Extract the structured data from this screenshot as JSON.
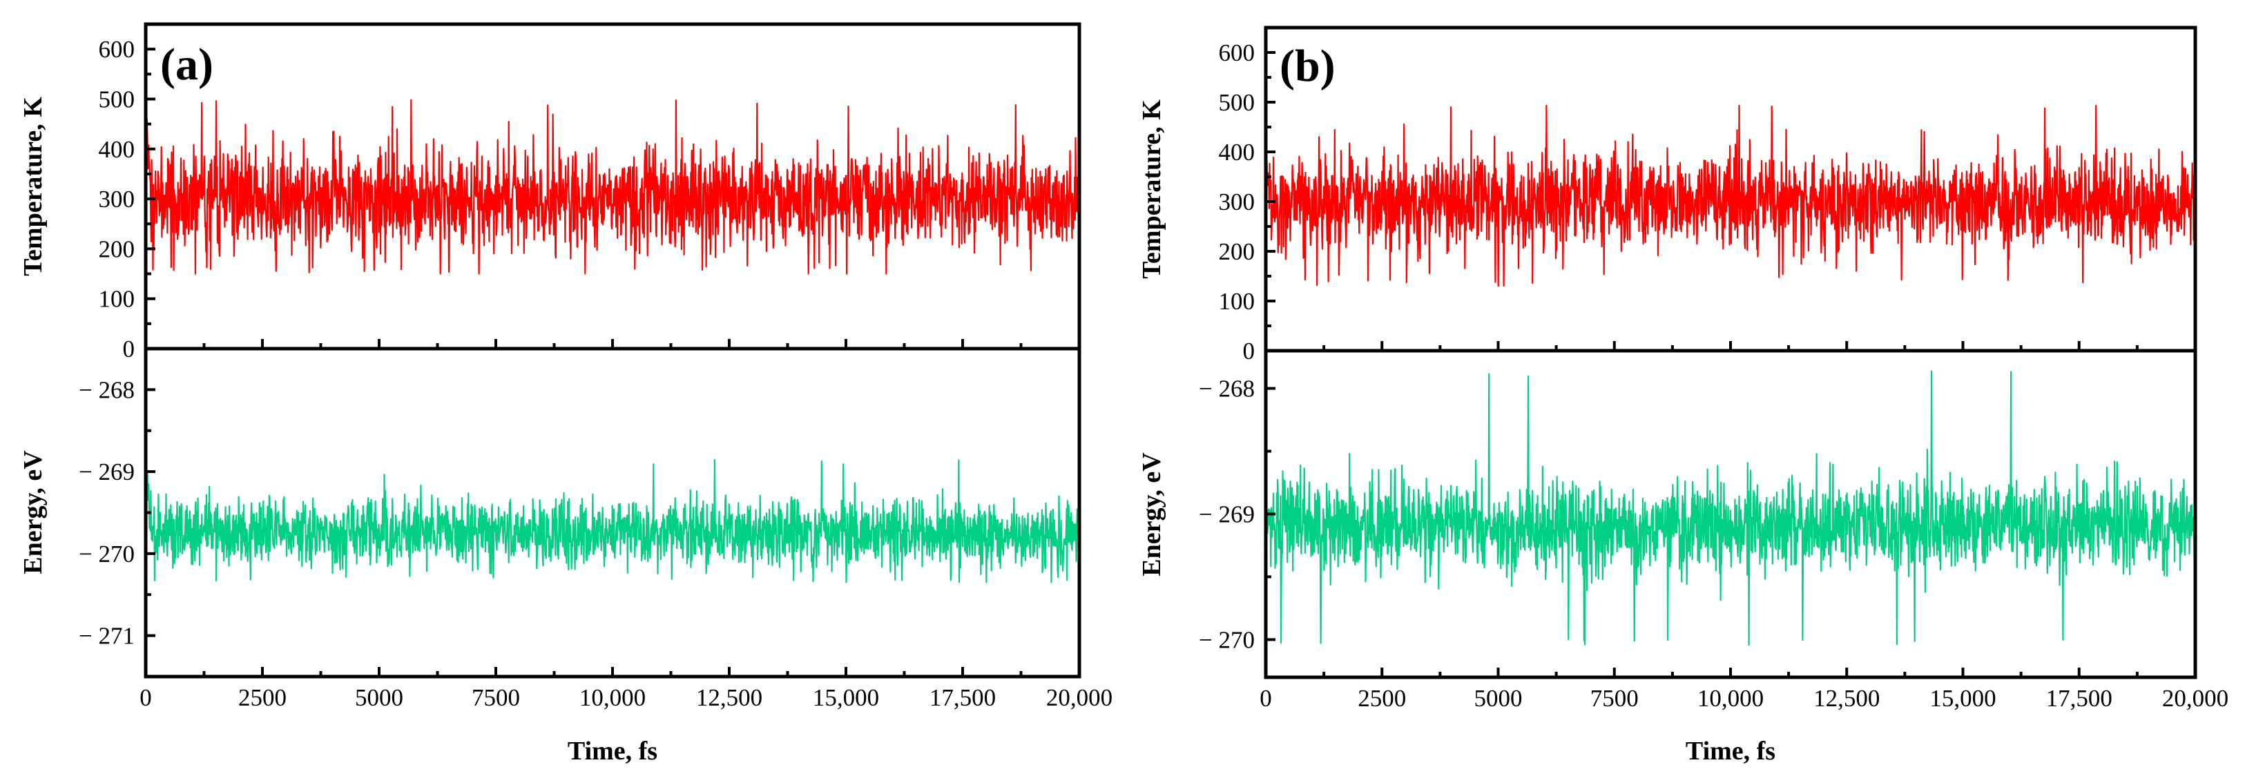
{
  "chart_data": [
    {
      "panel": "(a)",
      "type": "line",
      "x": {
        "label": "Time, fs",
        "range": [
          0,
          20000
        ],
        "ticks": [
          0,
          2500,
          5000,
          7500,
          10000,
          12500,
          15000,
          17500,
          20000
        ],
        "tick_labels": [
          "0",
          "2500",
          "5000",
          "7500",
          "10,000",
          "12,500",
          "15,000",
          "17,500",
          "20,000"
        ]
      },
      "subplots": [
        {
          "name": "temperature",
          "ylabel": "Temperature, K",
          "ylim": [
            0,
            650
          ],
          "ticks": [
            0,
            100,
            200,
            300,
            400,
            500,
            600
          ],
          "tick_labels": [
            "0",
            "100",
            "200",
            "300",
            "400",
            "500",
            "600"
          ],
          "color": "#ff0000",
          "series": {
            "name": "Temperature",
            "mean": 300,
            "typical_min": 200,
            "typical_max": 410,
            "observed_min": 150,
            "observed_max": 498,
            "initial": 460
          }
        },
        {
          "name": "energy",
          "ylabel": "Energy, eV",
          "ylim": [
            -271.5,
            -267.5
          ],
          "ticks": [
            -268,
            -269,
            -270,
            -271
          ],
          "tick_labels": [
            "− 268",
            "− 269",
            "− 270",
            "− 271"
          ],
          "color": "#00d084",
          "series": {
            "name": "Energy",
            "mean": -269.75,
            "typical_min": -270.15,
            "typical_max": -269.3,
            "observed_min": -270.35,
            "observed_max": -268.85,
            "initial": -269.0
          }
        }
      ]
    },
    {
      "panel": "(b)",
      "type": "line",
      "x": {
        "label": "Time, fs",
        "range": [
          0,
          20000
        ],
        "ticks": [
          0,
          2500,
          5000,
          7500,
          10000,
          12500,
          15000,
          17500,
          20000
        ],
        "tick_labels": [
          "0",
          "2500",
          "5000",
          "7500",
          "10,000",
          "12,500",
          "15,000",
          "17,500",
          "20,000"
        ]
      },
      "subplots": [
        {
          "name": "temperature",
          "ylabel": "Temperature, K",
          "ylim": [
            0,
            650
          ],
          "ticks": [
            0,
            100,
            200,
            300,
            400,
            500,
            600
          ],
          "tick_labels": [
            "0",
            "100",
            "200",
            "300",
            "400",
            "500",
            "600"
          ],
          "color": "#ff0000",
          "series": {
            "name": "Temperature",
            "mean": 300,
            "typical_min": 200,
            "typical_max": 400,
            "observed_min": 130,
            "observed_max": 495,
            "initial": 410
          }
        },
        {
          "name": "energy",
          "ylabel": "Energy, eV",
          "ylim": [
            -270.3,
            -267.7
          ],
          "ticks": [
            -268,
            -269,
            -270
          ],
          "tick_labels": [
            "− 268",
            "− 269",
            "− 270"
          ],
          "color": "#00d084",
          "series": {
            "name": "Energy",
            "mean": -269.1,
            "typical_min": -269.45,
            "typical_max": -268.7,
            "observed_min": -270.05,
            "observed_max": -267.85,
            "initial": -269.0
          }
        }
      ]
    }
  ]
}
